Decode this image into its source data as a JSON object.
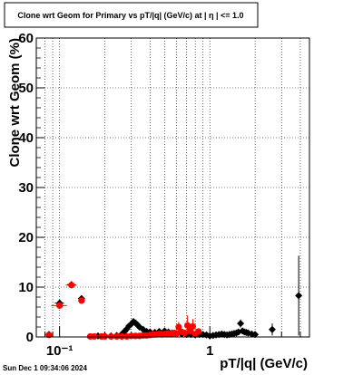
{
  "title": "Clone wrt Geom for Primary vs pT/|q| (GeV/c) at |  η  | <= 1.0",
  "footer": "Sun Dec  1 09:34:06 2024",
  "chart_data": {
    "type": "scatter",
    "title": "Clone wrt Geom for Primary vs pT/|q| (GeV/c) at |  η  | <= 1.0",
    "xlabel": "pT/|q| (GeV/c)",
    "ylabel": "Clone wrt Geom (%)",
    "xscale": "log",
    "xlim": [
      0.07,
      4.6
    ],
    "ylim": [
      0,
      60
    ],
    "yticks": [
      0,
      10,
      20,
      30,
      40,
      50,
      60
    ],
    "xtick_labels": [
      {
        "value": 0.1,
        "label": "10⁻¹"
      },
      {
        "value": 1,
        "label": "1"
      }
    ],
    "grid": true,
    "series": [
      {
        "color": "#000000",
        "marker": "diamond",
        "points": [
          {
            "x": 0.085,
            "y": 0.5,
            "xerr": 0.003,
            "yerr": 0.3
          },
          {
            "x": 0.1,
            "y": 6.8,
            "xerr": 0.007,
            "yerr": 0.6
          },
          {
            "x": 0.12,
            "y": 10.5,
            "xerr": 0.008,
            "yerr": 0.6
          },
          {
            "x": 0.14,
            "y": 7.7,
            "xerr": 0.006,
            "yerr": 0.6
          },
          {
            "x": 0.18,
            "y": 0.2
          },
          {
            "x": 0.2,
            "y": 0.2
          },
          {
            "x": 0.22,
            "y": 0.2
          },
          {
            "x": 0.24,
            "y": 0.3
          },
          {
            "x": 0.26,
            "y": 0.6
          },
          {
            "x": 0.27,
            "y": 1.1
          },
          {
            "x": 0.28,
            "y": 1.6
          },
          {
            "x": 0.29,
            "y": 2.2
          },
          {
            "x": 0.3,
            "y": 2.6
          },
          {
            "x": 0.31,
            "y": 3.1
          },
          {
            "x": 0.32,
            "y": 2.8
          },
          {
            "x": 0.33,
            "y": 2.4
          },
          {
            "x": 0.34,
            "y": 2.0
          },
          {
            "x": 0.36,
            "y": 1.5
          },
          {
            "x": 0.38,
            "y": 1.1
          },
          {
            "x": 0.4,
            "y": 1.0
          },
          {
            "x": 0.43,
            "y": 0.9
          },
          {
            "x": 0.46,
            "y": 1.1
          },
          {
            "x": 0.5,
            "y": 1.2
          },
          {
            "x": 0.53,
            "y": 1.0
          },
          {
            "x": 0.56,
            "y": 0.8
          },
          {
            "x": 0.6,
            "y": 0.7
          },
          {
            "x": 0.65,
            "y": 0.6
          },
          {
            "x": 0.7,
            "y": 0.5
          },
          {
            "x": 0.75,
            "y": 0.5
          },
          {
            "x": 0.8,
            "y": 0.4
          },
          {
            "x": 0.85,
            "y": 0.5
          },
          {
            "x": 0.9,
            "y": 0.5
          },
          {
            "x": 0.95,
            "y": 0.4
          },
          {
            "x": 1.0,
            "y": 0.2
          },
          {
            "x": 1.05,
            "y": 0.3
          },
          {
            "x": 1.1,
            "y": 0.4
          },
          {
            "x": 1.15,
            "y": 0.5
          },
          {
            "x": 1.2,
            "y": 0.6
          },
          {
            "x": 1.25,
            "y": 0.5
          },
          {
            "x": 1.3,
            "y": 0.4
          },
          {
            "x": 1.35,
            "y": 0.5
          },
          {
            "x": 1.4,
            "y": 0.6
          },
          {
            "x": 1.45,
            "y": 0.7
          },
          {
            "x": 1.5,
            "y": 0.8
          },
          {
            "x": 1.55,
            "y": 1.0
          },
          {
            "x": 1.6,
            "y": 2.7,
            "yerr": 0.8
          },
          {
            "x": 1.65,
            "y": 1.2
          },
          {
            "x": 1.7,
            "y": 1.0
          },
          {
            "x": 1.75,
            "y": 0.9
          },
          {
            "x": 1.8,
            "y": 0.8
          },
          {
            "x": 1.9,
            "y": 0.6
          },
          {
            "x": 2.0,
            "y": 0.5
          },
          {
            "x": 2.6,
            "y": 1.5,
            "yerr": 1.2
          },
          {
            "x": 3.9,
            "y": 8.3,
            "yerr": 8.0
          }
        ]
      },
      {
        "color": "#ff0000",
        "marker": "circle",
        "points": [
          {
            "x": 0.085,
            "y": 0.4,
            "xerr": 0.003,
            "yerr": 0.3
          },
          {
            "x": 0.1,
            "y": 6.3,
            "xerr": 0.012,
            "yerr": 0.6
          },
          {
            "x": 0.12,
            "y": 10.4,
            "xerr": 0.01,
            "yerr": 0.6
          },
          {
            "x": 0.14,
            "y": 7.3,
            "xerr": 0.006,
            "yerr": 0.6
          },
          {
            "x": 0.16,
            "y": 0.1
          },
          {
            "x": 0.17,
            "y": 0.1
          },
          {
            "x": 0.19,
            "y": 0.1
          },
          {
            "x": 0.2,
            "y": 0.1
          },
          {
            "x": 0.22,
            "y": 0.1
          },
          {
            "x": 0.24,
            "y": 0.1
          },
          {
            "x": 0.26,
            "y": 0.1
          },
          {
            "x": 0.28,
            "y": 0.1
          },
          {
            "x": 0.3,
            "y": 0.2
          },
          {
            "x": 0.32,
            "y": 0.2
          },
          {
            "x": 0.34,
            "y": 0.2
          },
          {
            "x": 0.36,
            "y": 0.3
          },
          {
            "x": 0.38,
            "y": 0.3
          },
          {
            "x": 0.4,
            "y": 0.4
          },
          {
            "x": 0.42,
            "y": 0.5
          },
          {
            "x": 0.44,
            "y": 0.5
          },
          {
            "x": 0.46,
            "y": 0.6
          },
          {
            "x": 0.48,
            "y": 0.5
          },
          {
            "x": 0.5,
            "y": 0.6
          },
          {
            "x": 0.52,
            "y": 0.7
          },
          {
            "x": 0.54,
            "y": 0.6
          },
          {
            "x": 0.56,
            "y": 0.7
          },
          {
            "x": 0.58,
            "y": 0.8
          },
          {
            "x": 0.6,
            "y": 0.7
          },
          {
            "x": 0.62,
            "y": 2.0,
            "yerr": 1.0
          },
          {
            "x": 0.65,
            "y": 1.0
          },
          {
            "x": 0.68,
            "y": 0.8
          },
          {
            "x": 0.71,
            "y": 2.3,
            "yerr": 2.0
          },
          {
            "x": 0.74,
            "y": 1.2
          },
          {
            "x": 0.77,
            "y": 2.1,
            "yerr": 1.5
          },
          {
            "x": 0.8,
            "y": 0.6
          },
          {
            "x": 0.84,
            "y": 1.1
          }
        ]
      }
    ]
  }
}
